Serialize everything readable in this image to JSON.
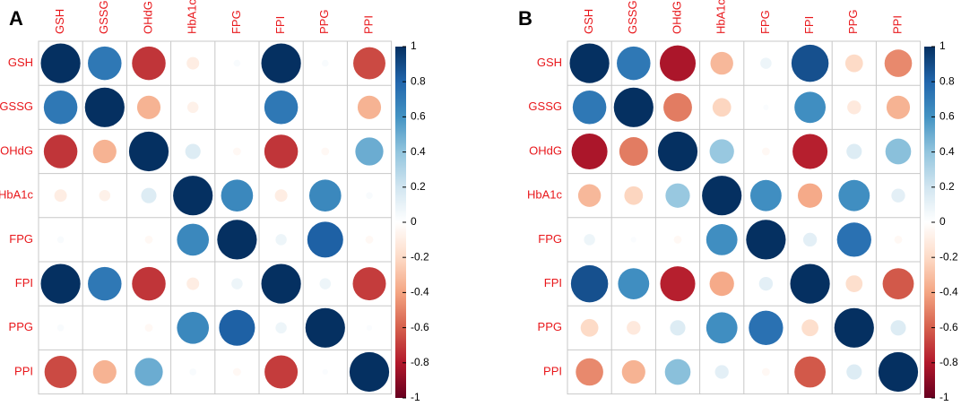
{
  "chart_data": [
    {
      "type": "heatmap",
      "subtype": "correlation-circles",
      "panel_label": "A",
      "variables": [
        "GSH",
        "GSSG",
        "OHdG",
        "HbA1c",
        "FPG",
        "FPI",
        "PPG",
        "PPI"
      ],
      "matrix": [
        [
          1.0,
          0.72,
          -0.72,
          -0.1,
          0.03,
          1.0,
          0.03,
          -0.66
        ],
        [
          0.72,
          1.0,
          -0.35,
          -0.08,
          0.0,
          0.72,
          0.0,
          -0.35
        ],
        [
          -0.72,
          -0.35,
          1.0,
          0.15,
          -0.04,
          -0.72,
          -0.04,
          0.5
        ],
        [
          -0.1,
          -0.08,
          0.15,
          1.0,
          0.65,
          -0.1,
          0.65,
          0.03
        ],
        [
          0.03,
          0.0,
          -0.04,
          0.65,
          1.0,
          0.08,
          0.82,
          -0.04
        ],
        [
          1.0,
          0.72,
          -0.72,
          -0.1,
          0.08,
          1.0,
          0.08,
          -0.7
        ],
        [
          0.03,
          0.0,
          -0.04,
          0.65,
          0.82,
          0.08,
          1.0,
          0.02
        ],
        [
          -0.66,
          -0.35,
          0.5,
          0.03,
          -0.04,
          -0.7,
          0.02,
          1.0
        ]
      ],
      "colorbar": {
        "min": -1,
        "max": 1,
        "ticks": [
          "1",
          "0.8",
          "0.6",
          "0.4",
          "0.2",
          "0",
          "-0.2",
          "-0.4",
          "-0.6",
          "-0.8",
          "-1"
        ]
      }
    },
    {
      "type": "heatmap",
      "subtype": "correlation-circles",
      "panel_label": "B",
      "variables": [
        "GSH",
        "GSSG",
        "OHdG",
        "HbA1c",
        "FPG",
        "FPI",
        "PPG",
        "PPI"
      ],
      "matrix": [
        [
          1.0,
          0.72,
          -0.82,
          -0.33,
          0.08,
          0.88,
          -0.2,
          -0.48
        ],
        [
          0.72,
          1.0,
          -0.52,
          -0.22,
          0.02,
          0.62,
          -0.12,
          -0.35
        ],
        [
          -0.82,
          -0.52,
          1.0,
          0.38,
          -0.04,
          -0.78,
          0.15,
          0.42
        ],
        [
          -0.33,
          -0.22,
          0.38,
          1.0,
          0.62,
          -0.38,
          0.62,
          0.12
        ],
        [
          0.08,
          0.02,
          -0.04,
          0.62,
          1.0,
          0.12,
          0.75,
          -0.04
        ],
        [
          0.88,
          0.62,
          -0.78,
          -0.38,
          0.12,
          1.0,
          -0.18,
          -0.62
        ],
        [
          -0.2,
          -0.12,
          0.15,
          0.62,
          0.75,
          -0.18,
          1.0,
          0.15
        ],
        [
          -0.48,
          -0.35,
          0.42,
          0.12,
          -0.04,
          -0.62,
          0.15,
          1.0
        ]
      ],
      "colorbar": {
        "min": -1,
        "max": 1,
        "ticks": [
          "1",
          "0.8",
          "0.6",
          "0.4",
          "0.2",
          "0",
          "-0.2",
          "-0.4",
          "-0.6",
          "-0.8",
          "-1"
        ]
      }
    }
  ],
  "colors": {
    "label_red": "#e8171b",
    "grid": "#c8c8c8",
    "scale": [
      "#67001f",
      "#b2182b",
      "#d6604d",
      "#f4a582",
      "#fddbc7",
      "#ffffff",
      "#d1e5f0",
      "#92c5de",
      "#4393c3",
      "#2166ac",
      "#053061"
    ]
  }
}
